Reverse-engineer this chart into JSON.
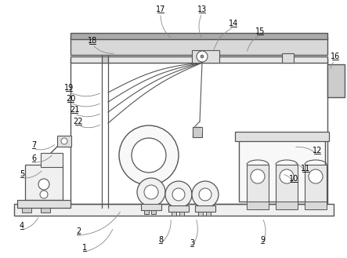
{
  "bg_color": "#ffffff",
  "lc": "#888888",
  "dc": "#555555",
  "label_positions": {
    "1": [
      108,
      316,
      145,
      290
    ],
    "2": [
      100,
      295,
      155,
      268
    ],
    "3": [
      245,
      310,
      250,
      278
    ],
    "4": [
      28,
      288,
      50,
      275
    ],
    "5": [
      28,
      222,
      55,
      216
    ],
    "6": [
      43,
      202,
      68,
      196
    ],
    "7": [
      43,
      185,
      72,
      183
    ],
    "8": [
      205,
      306,
      218,
      278
    ],
    "9": [
      335,
      306,
      335,
      278
    ],
    "10": [
      375,
      228,
      360,
      222
    ],
    "11": [
      390,
      215,
      375,
      208
    ],
    "12": [
      405,
      192,
      375,
      188
    ],
    "13": [
      258,
      12,
      258,
      50
    ],
    "14": [
      298,
      30,
      272,
      68
    ],
    "15": [
      332,
      40,
      315,
      68
    ],
    "16": [
      428,
      72,
      422,
      90
    ],
    "17": [
      205,
      12,
      220,
      50
    ],
    "18": [
      118,
      52,
      148,
      68
    ],
    "19": [
      88,
      112,
      130,
      118
    ],
    "20": [
      90,
      126,
      130,
      131
    ],
    "21": [
      95,
      140,
      130,
      144
    ],
    "22": [
      100,
      155,
      130,
      158
    ]
  }
}
